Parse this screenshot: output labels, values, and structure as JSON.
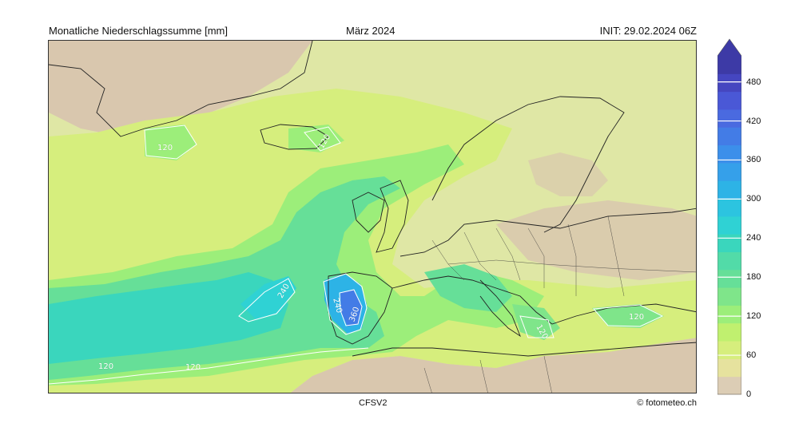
{
  "header": {
    "left": "Monatliche Niederschlagssumme [mm]",
    "center": "März 2024",
    "right": "INIT: 29.02.2024 06Z"
  },
  "footer": {
    "model": "CFSV2",
    "credit": "© fotometeo.ch"
  },
  "colorbar": {
    "unit": "mm",
    "ticks": [
      "0",
      "60",
      "120",
      "180",
      "240",
      "300",
      "360",
      "420",
      "480"
    ],
    "colors": [
      "#dccdb5",
      "#e6e29e",
      "#d6ee7d",
      "#c0f06f",
      "#9cee7a",
      "#7fe58a",
      "#66df98",
      "#52dba8",
      "#3ad6bd",
      "#2fd2d4",
      "#2cc4e0",
      "#2db3e6",
      "#35a0ea",
      "#3c8fea",
      "#437ce6",
      "#4a6ae0",
      "#4a58d6",
      "#4546c0",
      "#3d3aa6"
    ],
    "over_color": "#3d3aa6"
  },
  "map": {
    "region": "North Atlantic and Europe",
    "contour_labels": [
      {
        "text": "120",
        "value": 120
      },
      {
        "text": "120",
        "value": 120
      },
      {
        "text": "240",
        "value": 240
      },
      {
        "text": "240",
        "value": 240
      },
      {
        "text": "360",
        "value": 360
      },
      {
        "text": "120",
        "value": 120
      },
      {
        "text": "120",
        "value": 120
      },
      {
        "text": "120",
        "value": 120
      },
      {
        "text": "120",
        "value": 120
      }
    ]
  }
}
